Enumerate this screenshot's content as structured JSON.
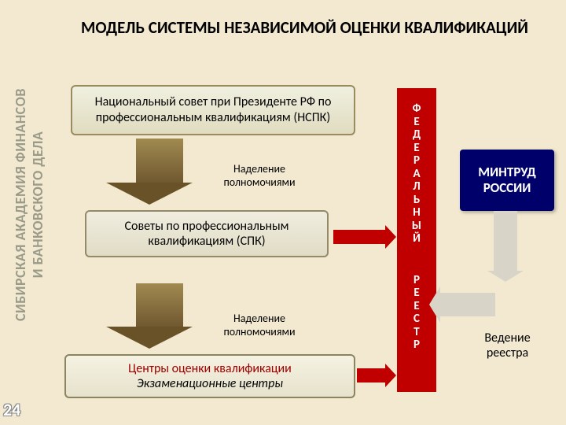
{
  "title": "МОДЕЛЬ СИСТЕМЫ НЕЗАВИСИМОЙ ОЦЕНКИ КВАЛИФИКАЦИЙ",
  "sidebar": {
    "line1": "СИБИРСКАЯ АКАДЕМИЯ ФИНАНСОВ",
    "line2": "И БАНКОВСКОГО ДЕЛА"
  },
  "page_number": "24",
  "boxes": {
    "nspk": "Национальный совет при Президенте РФ по профессиональным квалификациям (НСПК)",
    "nadelenie": "Наделение полномочиями",
    "spk": "Советы по профессиональным квалификациям (СПК)",
    "centers_l1": "Центры оценки квалификации",
    "centers_l2": "Экзаменационные центры",
    "mintrud": "МИНТРУД РОССИИ",
    "vedenie": "Ведение реестра"
  },
  "red_column": {
    "word1": "ФЕДЕРАЛЬНЫЙ",
    "word2": "РЕЕСТР"
  },
  "colors": {
    "background": "#f2e9d0",
    "red": "#c00000",
    "navy": "#00006a",
    "box_border": "#9a8a60",
    "arrow_brown": "#6a5228",
    "gray_conn": "#d8d5c8"
  },
  "layout": {
    "type": "flowchart",
    "flow": [
      "nspk",
      "spk",
      "centers"
    ],
    "side_nodes": [
      "red_column",
      "mintrud",
      "vedenie"
    ]
  }
}
